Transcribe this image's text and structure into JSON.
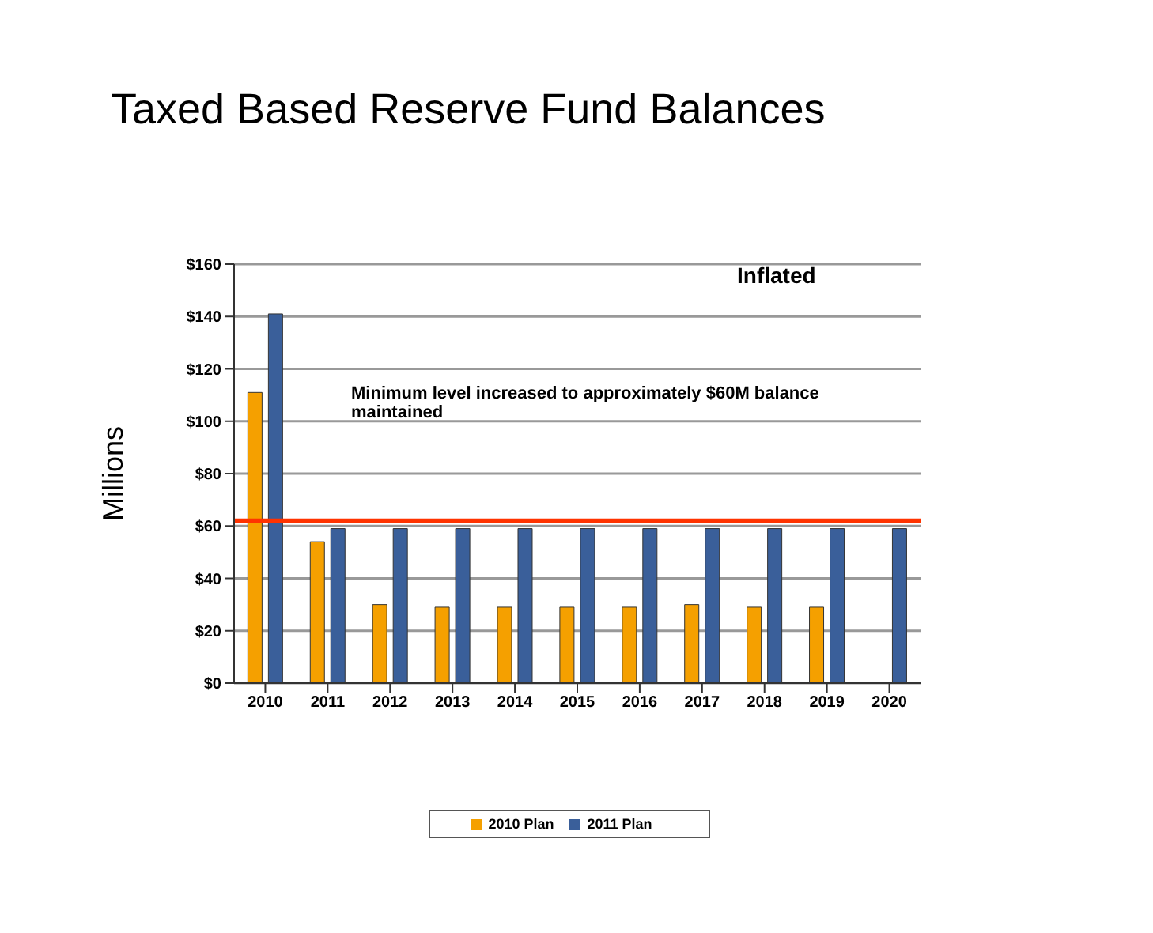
{
  "chart_data": {
    "type": "bar",
    "title": "Taxed Based Reserve Fund Balances",
    "ylabel": "Millions",
    "annotations": [
      "Inflated",
      "Minimum level increased to approximately $60M balance maintained"
    ],
    "categories": [
      "2010",
      "2011",
      "2012",
      "2013",
      "2014",
      "2015",
      "2016",
      "2017",
      "2018",
      "2019",
      "2020"
    ],
    "series": [
      {
        "name": "2010 Plan",
        "color": "#f5a000",
        "values": [
          111,
          54,
          30,
          29,
          29,
          29,
          29,
          30,
          29,
          29,
          0
        ]
      },
      {
        "name": "2011 Plan",
        "color": "#3a5f9a",
        "values": [
          141,
          59,
          59,
          59,
          59,
          59,
          59,
          59,
          59,
          59,
          59
        ]
      }
    ],
    "ylim": [
      0,
      160
    ],
    "yticks": [
      {
        "value": 0,
        "label": "$0"
      },
      {
        "value": 20,
        "label": "$20"
      },
      {
        "value": 40,
        "label": "$40"
      },
      {
        "value": 60,
        "label": "$60"
      },
      {
        "value": 80,
        "label": "$80"
      },
      {
        "value": 100,
        "label": "$100"
      },
      {
        "value": 120,
        "label": "$120"
      },
      {
        "value": 140,
        "label": "$140"
      },
      {
        "value": 160,
        "label": "$160"
      }
    ],
    "ref_lines": [
      {
        "axis": "y",
        "value": 62,
        "color": "#ff3300"
      }
    ],
    "grid": "y",
    "legend": "bottom"
  }
}
